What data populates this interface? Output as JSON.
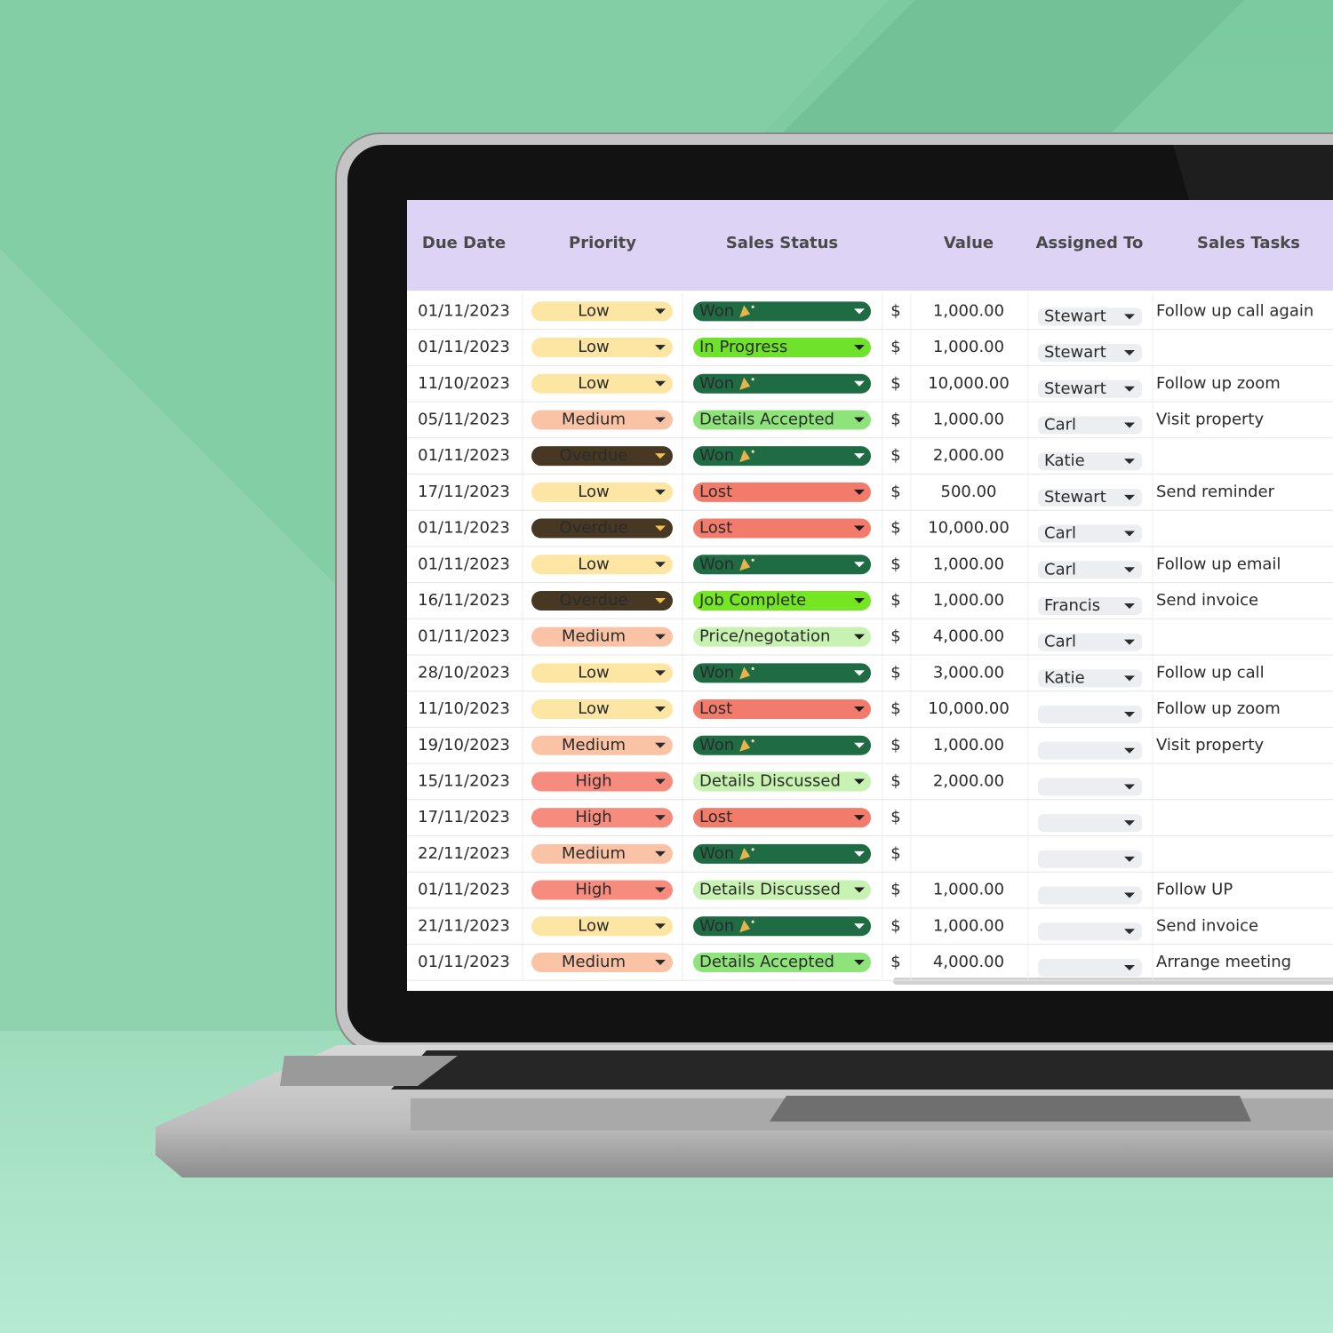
{
  "header": [
    "Due Date",
    "Priority",
    "Sales Status",
    "Value",
    "Assigned To",
    "Sales Tasks"
  ],
  "rows": [
    {
      "due": "01/11/2023",
      "priority": "Low",
      "priority_color": "#fde6a4",
      "status": "Won",
      "status_color": "#1f6b44",
      "status_text_color": "#d8f0cf",
      "currency": "$",
      "value": "1,000.00",
      "assigned": "Stewart",
      "task": "Follow up call again"
    },
    {
      "due": "01/11/2023",
      "priority": "Low",
      "priority_color": "#fde6a4",
      "status": "In Progress",
      "status_color": "#6fe22c",
      "currency": "$",
      "value": "1,000.00",
      "assigned": "Stewart"
    },
    {
      "due": "11/10/2023",
      "priority": "Low",
      "priority_color": "#fde6a4",
      "status": "Won",
      "status_color": "#1f6b44",
      "status_text_color": "#d8f0cf",
      "currency": "$",
      "value": "10,000.00",
      "assigned": "Stewart",
      "task": "Follow up zoom"
    },
    {
      "due": "05/11/2023",
      "priority": "Medium",
      "priority_color": "#fbc3a5",
      "status": "Details Accepted",
      "status_color": "#8ee47a",
      "currency": "$",
      "value": "1,000.00",
      "assigned": "Carl",
      "task": "Visit property"
    },
    {
      "due": "01/11/2023",
      "priority": "Overdue",
      "priority_color": "#473823",
      "priority_text_color": "#f2c24e",
      "status": "Won",
      "status_color": "#1f6b44",
      "status_text_color": "#d8f0cf",
      "currency": "$",
      "value": "2,000.00",
      "assigned": "Katie"
    },
    {
      "due": "17/11/2023",
      "priority": "Low",
      "priority_color": "#fde6a4",
      "status": "Lost",
      "status_color": "#f37b6c",
      "status_text_color": "#fde6e2",
      "currency": "$",
      "value": "500.00",
      "assigned": "Stewart",
      "task": "Send reminder"
    },
    {
      "due": "01/11/2023",
      "priority": "Overdue",
      "priority_color": "#473823",
      "priority_text_color": "#f2c24e",
      "status": "Lost",
      "status_color": "#f37b6c",
      "status_text_color": "#fde6e2",
      "currency": "$",
      "value": "10,000.00",
      "assigned": "Carl"
    },
    {
      "due": "01/11/2023",
      "priority": "Low",
      "priority_color": "#fde6a4",
      "status": "Won",
      "status_color": "#1f6b44",
      "status_text_color": "#d8f0cf",
      "currency": "$",
      "value": "1,000.00",
      "assigned": "Carl",
      "task": "Follow up email"
    },
    {
      "due": "16/11/2023",
      "priority": "Overdue",
      "priority_color": "#473823",
      "priority_text_color": "#f2c24e",
      "status": "Job Complete",
      "status_color": "#74e622",
      "currency": "$",
      "value": "1,000.00",
      "assigned": "Francis",
      "task": "Send invoice"
    },
    {
      "due": "01/11/2023",
      "priority": "Medium",
      "priority_color": "#fbc3a5",
      "status": "Price/negotation",
      "status_color": "#c8f2b2",
      "currency": "$",
      "value": "4,000.00",
      "assigned": "Carl"
    },
    {
      "due": "28/10/2023",
      "priority": "Low",
      "priority_color": "#fde6a4",
      "status": "Won",
      "status_color": "#1f6b44",
      "status_text_color": "#d8f0cf",
      "currency": "$",
      "value": "3,000.00",
      "assigned": "Katie",
      "task": "Follow up call"
    },
    {
      "due": "11/10/2023",
      "priority": "Low",
      "priority_color": "#fde6a4",
      "status": "Lost",
      "status_color": "#f37b6c",
      "status_text_color": "#fde6e2",
      "currency": "$",
      "value": "10,000.00",
      "task": "Follow up zoom"
    },
    {
      "due": "19/10/2023",
      "priority": "Medium",
      "priority_color": "#fbc3a5",
      "status": "Won",
      "status_color": "#1f6b44",
      "status_text_color": "#d8f0cf",
      "currency": "$",
      "value": "1,000.00",
      "task": "Visit property"
    },
    {
      "due": "15/11/2023",
      "priority": "High",
      "priority_color": "#f78b7e",
      "status": "Details Discussed",
      "status_color": "#c8f2b2",
      "currency": "$",
      "value": "2,000.00"
    },
    {
      "due": "17/11/2023",
      "priority": "High",
      "priority_color": "#f78b7e",
      "status": "Lost",
      "status_color": "#f37b6c",
      "status_text_color": "#fde6e2",
      "currency": "$"
    },
    {
      "due": "22/11/2023",
      "priority": "Medium",
      "priority_color": "#fbc3a5",
      "status": "Won",
      "status_color": "#1f6b44",
      "status_text_color": "#d8f0cf",
      "currency": "$"
    },
    {
      "due": "01/11/2023",
      "priority": "High",
      "priority_color": "#f78b7e",
      "status": "Details Discussed",
      "status_color": "#c8f2b2",
      "currency": "$",
      "value": "1,000.00",
      "task": "Follow UP"
    },
    {
      "due": "21/11/2023",
      "priority": "Low",
      "priority_color": "#fde6a4",
      "status": "Won",
      "status_color": "#1f6b44",
      "status_text_color": "#d8f0cf",
      "currency": "$",
      "value": "1,000.00",
      "task": "Send invoice"
    },
    {
      "due": "01/11/2023",
      "priority": "Medium",
      "priority_color": "#fbc3a5",
      "status": "Details Accepted",
      "status_color": "#8ee47a",
      "currency": "$",
      "value": "4,000.00",
      "task": "Arrange meeting"
    }
  ]
}
